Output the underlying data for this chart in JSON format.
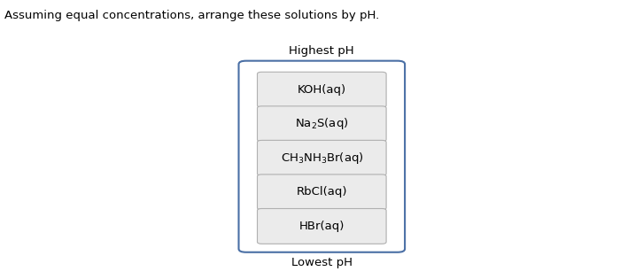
{
  "title_text": "Assuming equal concentrations, arrange these solutions by pH.",
  "title_fontsize": 9.5,
  "highest_label": "Highest pH",
  "lowest_label": "Lowest pH",
  "compounds": [
    "KOH(aq)",
    "Na$_2$S(aq)",
    "CH$_3$NH$_3$Br(aq)",
    "RbCl(aq)",
    "HBr(aq)"
  ],
  "outer_box_color": "#4a6fa5",
  "inner_box_facecolor": "#ebebeb",
  "inner_box_edgecolor": "#b0b0b0",
  "text_color": "#000000",
  "background_color": "#ffffff",
  "compound_fontsize": 9.5,
  "label_fontsize": 9.5
}
